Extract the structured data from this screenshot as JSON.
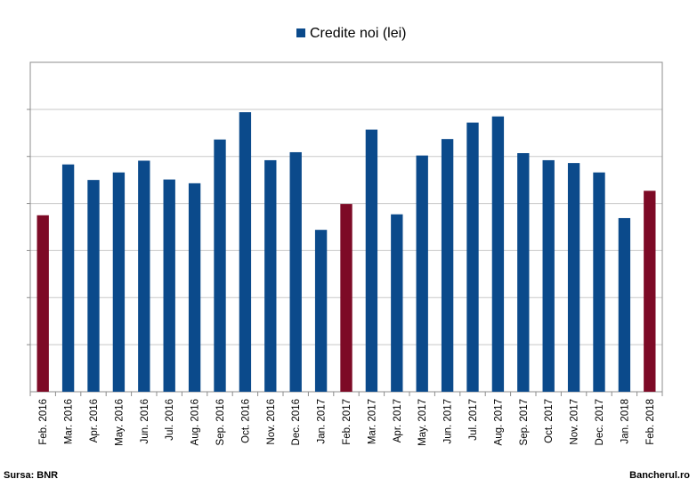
{
  "chart_data": {
    "type": "bar",
    "categories": [
      "Feb. 2016",
      "Mar. 2016",
      "Apr. 2016",
      "May. 2016",
      "Jun. 2016",
      "Jul. 2016",
      "Aug. 2016",
      "Sep. 2016",
      "Oct. 2016",
      "Nov. 2016",
      "Dec. 2016",
      "Jan. 2017",
      "Feb. 2017",
      "Mar. 2017",
      "Apr. 2017",
      "May. 2017",
      "Jun. 2017",
      "Jul. 2017",
      "Aug. 2017",
      "Sep. 2017",
      "Oct. 2017",
      "Nov. 2017",
      "Dec. 2017",
      "Jan. 2018",
      "Feb. 2018"
    ],
    "series": [
      {
        "name": "Credite noi (lei)",
        "values": [
          3.75,
          4.83,
          4.5,
          4.66,
          4.91,
          4.51,
          4.43,
          5.36,
          5.94,
          4.92,
          5.09,
          3.44,
          3.99,
          5.57,
          3.77,
          5.02,
          5.37,
          5.72,
          5.85,
          5.07,
          4.92,
          4.86,
          4.66,
          3.69,
          4.27
        ]
      }
    ],
    "highlight_categories": [
      "Feb. 2016",
      "Feb. 2017",
      "Feb. 2018"
    ],
    "ylim": [
      0,
      7
    ],
    "grid": true,
    "legend_position": "top-center",
    "colors": {
      "bar": "#0b4a8b",
      "highlight": "#7d0a26",
      "grid": "#c8c8c8",
      "axis": "#8c8c8c"
    },
    "xlabel": "",
    "ylabel": "",
    "title": ""
  },
  "footer": {
    "source": "Sursa: BNR",
    "brand": "Bancherul.ro"
  }
}
